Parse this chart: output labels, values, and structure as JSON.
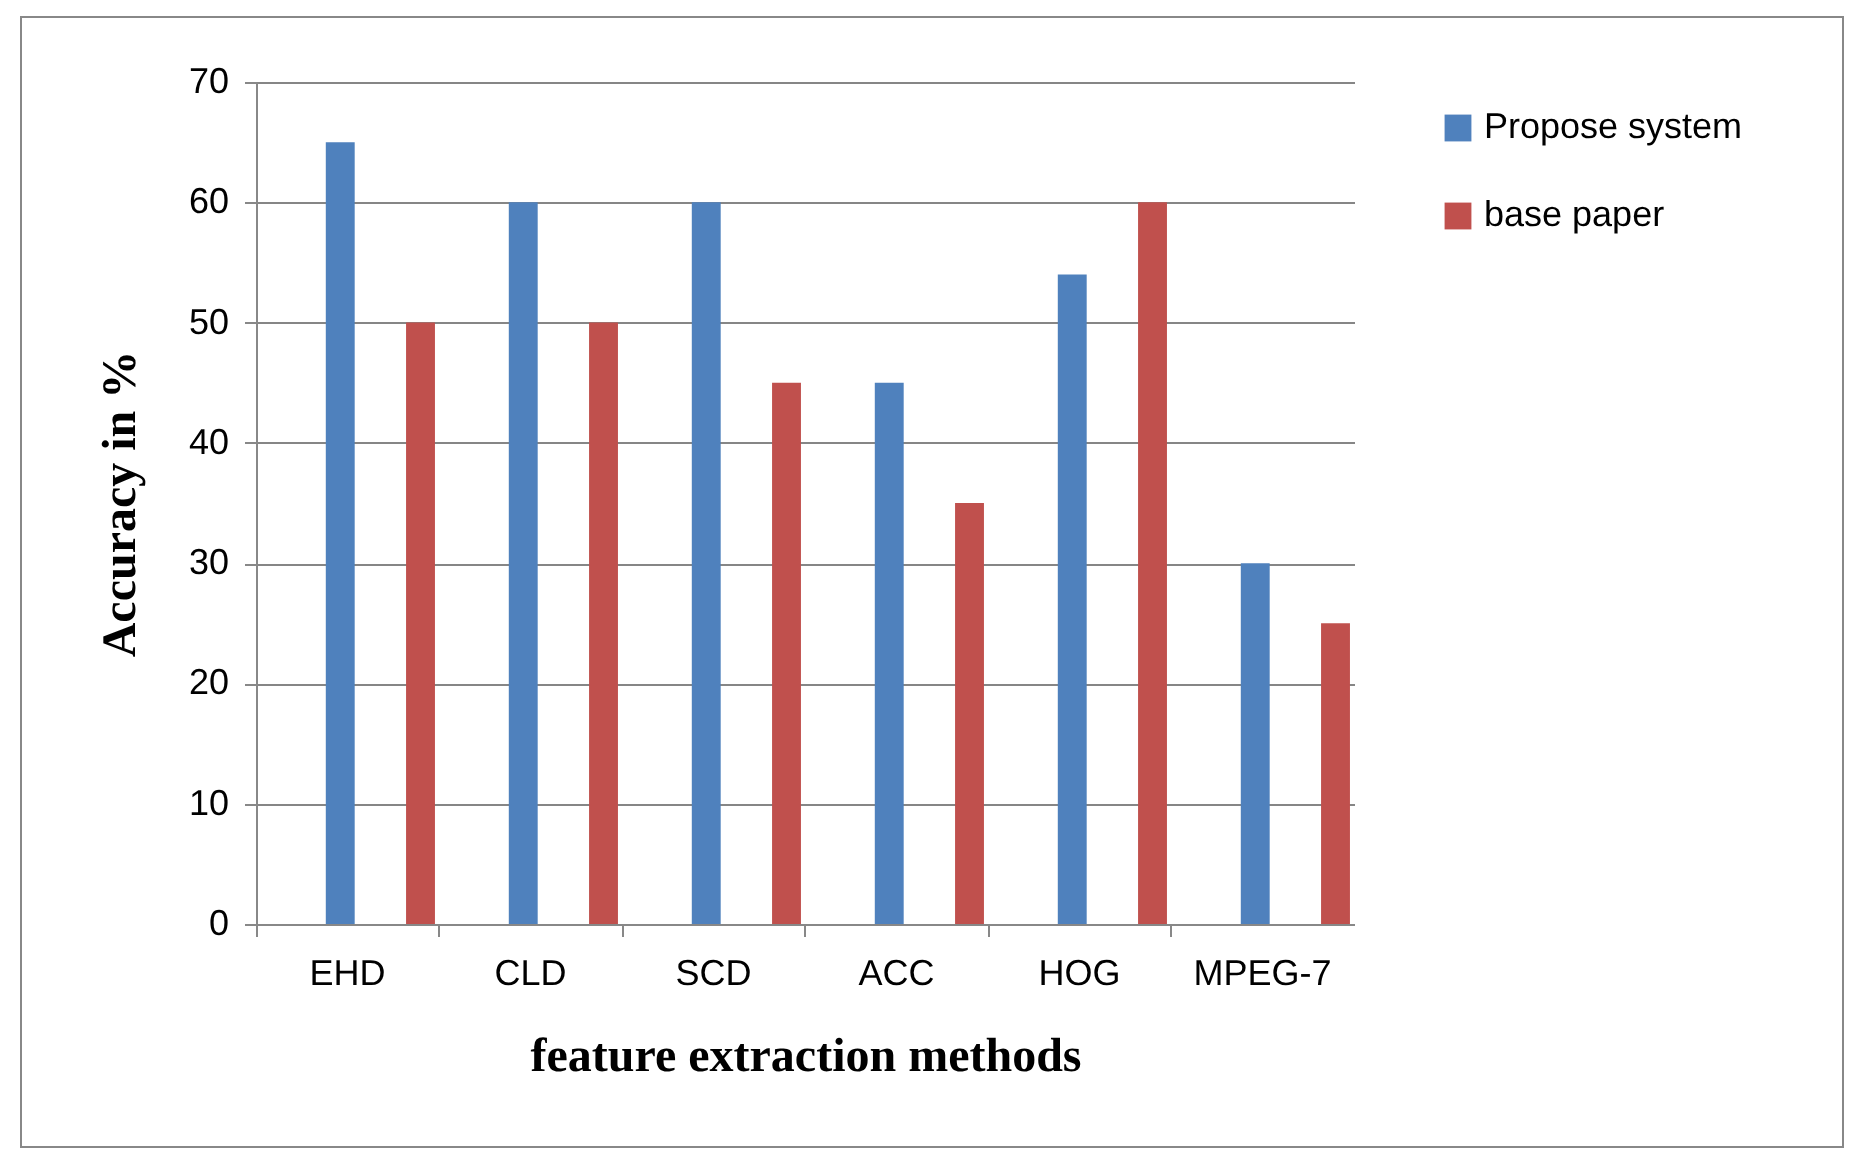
{
  "chart_data": {
    "type": "bar",
    "xlabel": "feature extraction methods",
    "ylabel": "Accuracy in %",
    "categories": [
      "EHD",
      "CLD",
      "SCD",
      "ACC",
      "HOG",
      "MPEG-7"
    ],
    "series": [
      {
        "name": "Propose system",
        "color": "#4f81bd",
        "values": [
          65,
          60,
          60,
          45,
          54,
          30
        ]
      },
      {
        "name": "base paper",
        "color": "#c0504d",
        "values": [
          50,
          50,
          45,
          35,
          60,
          25
        ]
      }
    ],
    "ylim": [
      0,
      70
    ],
    "yticks": [
      0,
      10,
      20,
      30,
      40,
      50,
      60,
      70
    ],
    "grid": "y",
    "legend": "right"
  }
}
